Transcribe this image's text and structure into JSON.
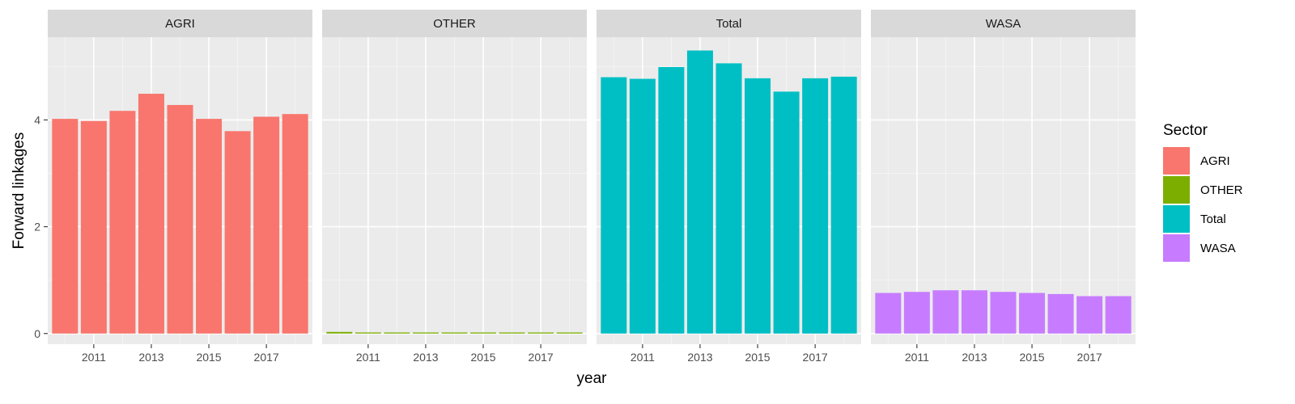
{
  "chart_data": {
    "type": "bar",
    "xlabel": "year",
    "ylabel": "Forward linkages",
    "x": [
      2010,
      2011,
      2012,
      2013,
      2014,
      2015,
      2016,
      2017,
      2018
    ],
    "x_tick_labels": [
      "2011",
      "2013",
      "2015",
      "2017"
    ],
    "x_tick_values": [
      2011,
      2013,
      2015,
      2017
    ],
    "y_tick_labels": [
      "0",
      "2",
      "4"
    ],
    "y_tick_values": [
      0,
      2,
      4
    ],
    "ylim": [
      -0.2,
      5.55
    ],
    "grid": true,
    "legend": {
      "title": "Sector",
      "position": "right"
    },
    "facets": [
      {
        "name": "AGRI",
        "color": "#F8766D",
        "values": [
          4.02,
          3.98,
          4.17,
          4.49,
          4.28,
          4.02,
          3.79,
          4.06,
          4.11
        ]
      },
      {
        "name": "OTHER",
        "color": "#7CAE00",
        "values": [
          0.03,
          0.02,
          0.02,
          0.02,
          0.02,
          0.02,
          0.02,
          0.02,
          0.02
        ]
      },
      {
        "name": "Total",
        "color": "#00BFC4",
        "values": [
          4.8,
          4.77,
          4.99,
          5.3,
          5.06,
          4.78,
          4.53,
          4.78,
          4.81
        ]
      },
      {
        "name": "WASA",
        "color": "#C77CFF",
        "values": [
          0.76,
          0.78,
          0.81,
          0.81,
          0.78,
          0.76,
          0.74,
          0.7,
          0.7
        ]
      }
    ]
  }
}
